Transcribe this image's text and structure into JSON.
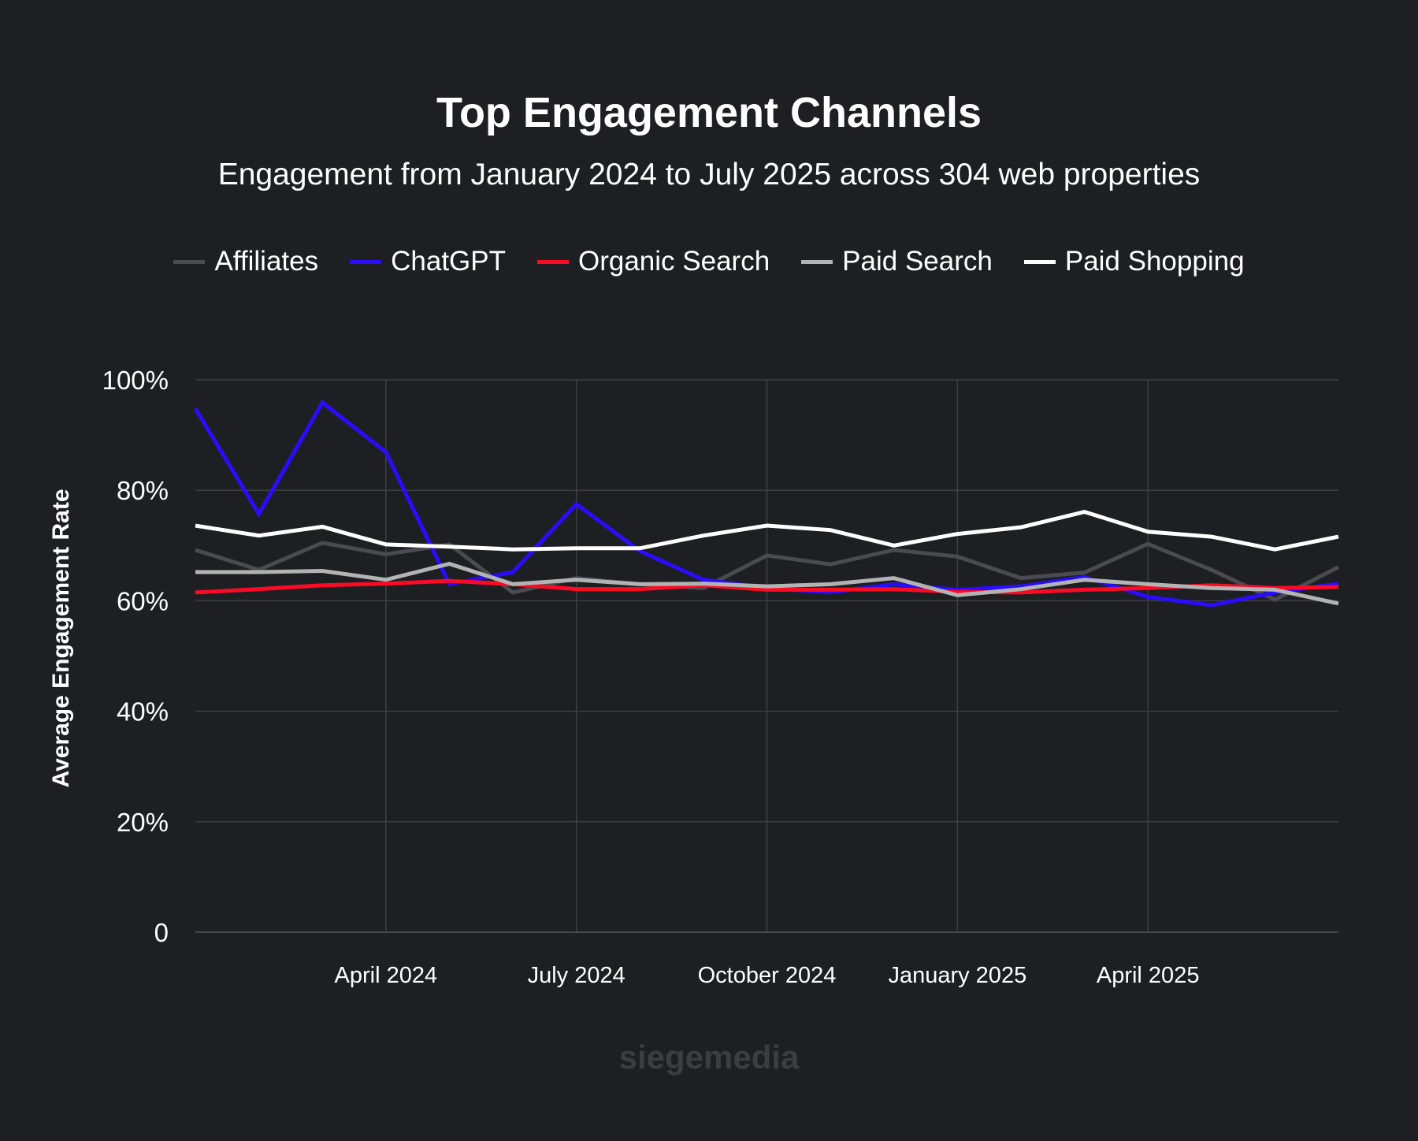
{
  "chart_data": {
    "type": "line",
    "title": "Top Engagement Channels",
    "subtitle": "Engagement from January 2024 to July 2025 across 304 web properties",
    "ylabel": "Average Engagement Rate",
    "xlabel": "",
    "x": [
      "2024-01",
      "2024-02",
      "2024-03",
      "2024-04",
      "2024-05",
      "2024-06",
      "2024-07",
      "2024-08",
      "2024-09",
      "2024-10",
      "2024-11",
      "2024-12",
      "2025-01",
      "2025-02",
      "2025-03",
      "2025-04",
      "2025-05",
      "2025-06",
      "2025-07"
    ],
    "x_ticks": [
      {
        "x": "2024-04",
        "label": "April 2024"
      },
      {
        "x": "2024-07",
        "label": "July 2024"
      },
      {
        "x": "2024-10",
        "label": "October 2024"
      },
      {
        "x": "2025-01",
        "label": "January 2025"
      },
      {
        "x": "2025-04",
        "label": "April 2025"
      }
    ],
    "y_ticks": [
      {
        "v": 0,
        "label": "0"
      },
      {
        "v": 20,
        "label": "20%"
      },
      {
        "v": 40,
        "label": "40%"
      },
      {
        "v": 60,
        "label": "60%"
      },
      {
        "v": 80,
        "label": "80%"
      },
      {
        "v": 100,
        "label": "100%"
      }
    ],
    "ylim": [
      0,
      100
    ],
    "grid": true,
    "legend_position": "top",
    "series": [
      {
        "name": "Affiliates",
        "color": "#4a4b50",
        "values": [
          69.2,
          65.6,
          70.5,
          68.4,
          70.2,
          61.5,
          64.1,
          63.0,
          62.3,
          68.2,
          66.6,
          69.2,
          68.0,
          64.1,
          65.1,
          70.3,
          65.6,
          60.2,
          66.1
        ]
      },
      {
        "name": "ChatGPT",
        "color": "#2a0cff",
        "values": [
          94.8,
          75.7,
          95.9,
          86.9,
          63.0,
          65.2,
          77.5,
          69.0,
          63.8,
          62.3,
          61.5,
          63.0,
          62.0,
          62.6,
          64.3,
          60.7,
          59.2,
          61.5,
          63.1
        ]
      },
      {
        "name": "Organic Search",
        "color": "#ff0a24",
        "values": [
          61.5,
          62.1,
          62.8,
          63.1,
          63.6,
          63.0,
          62.1,
          62.1,
          62.8,
          62.0,
          62.0,
          62.1,
          61.6,
          61.5,
          62.0,
          62.3,
          62.8,
          62.3,
          62.5
        ]
      },
      {
        "name": "Paid Search",
        "color": "#b3b3b3",
        "values": [
          65.2,
          65.2,
          65.4,
          63.8,
          66.7,
          63.0,
          63.8,
          63.0,
          63.1,
          62.6,
          63.0,
          64.1,
          61.0,
          62.1,
          63.8,
          63.0,
          62.3,
          62.0,
          59.5
        ]
      },
      {
        "name": "Paid Shopping",
        "color": "#ffffff",
        "values": [
          73.6,
          71.8,
          73.4,
          70.2,
          69.8,
          69.3,
          69.5,
          69.5,
          71.8,
          73.6,
          72.8,
          70.0,
          72.1,
          73.3,
          76.1,
          72.5,
          71.6,
          69.3,
          71.6
        ]
      }
    ]
  },
  "watermark": "siegemedia"
}
